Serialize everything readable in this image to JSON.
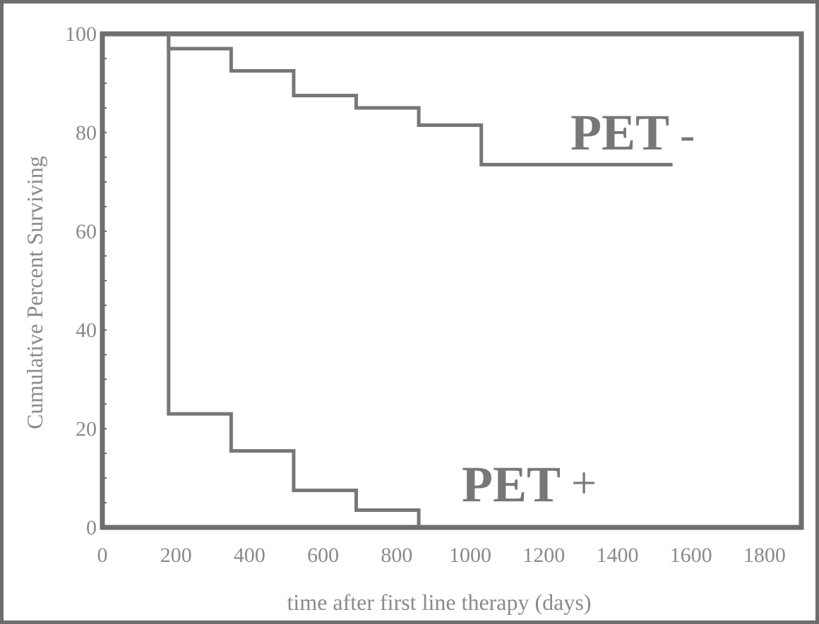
{
  "chart_data": {
    "type": "line",
    "step": true,
    "title": "",
    "xlabel": "time after first line therapy (days)",
    "ylabel": "Cumulative Percent Surviving",
    "xlim": [
      0,
      1900
    ],
    "ylim": [
      0,
      100
    ],
    "x_ticks": [
      "0",
      "200",
      "400",
      "600",
      "800",
      "1000",
      "1200",
      "1400",
      "1600",
      "1800"
    ],
    "y_ticks": [
      "0",
      "20",
      "40",
      "60",
      "80",
      "100"
    ],
    "grid": false,
    "colors": {
      "line": "#777777",
      "axis": "#6e6e6e",
      "text": "#8a8a8a"
    },
    "series": [
      {
        "name": "PET -",
        "label_main": "PET",
        "label_suffix": "-",
        "x": [
          180,
          350,
          520,
          690,
          860,
          1030,
          1550
        ],
        "y": [
          97,
          92.5,
          87.5,
          85,
          81.5,
          73.5,
          73.5
        ]
      },
      {
        "name": "PET +",
        "label_main": "PET",
        "label_suffix": "+",
        "x": [
          180,
          350,
          520,
          690,
          860
        ],
        "y": [
          23,
          15.5,
          7.5,
          3.5,
          0
        ]
      }
    ]
  }
}
